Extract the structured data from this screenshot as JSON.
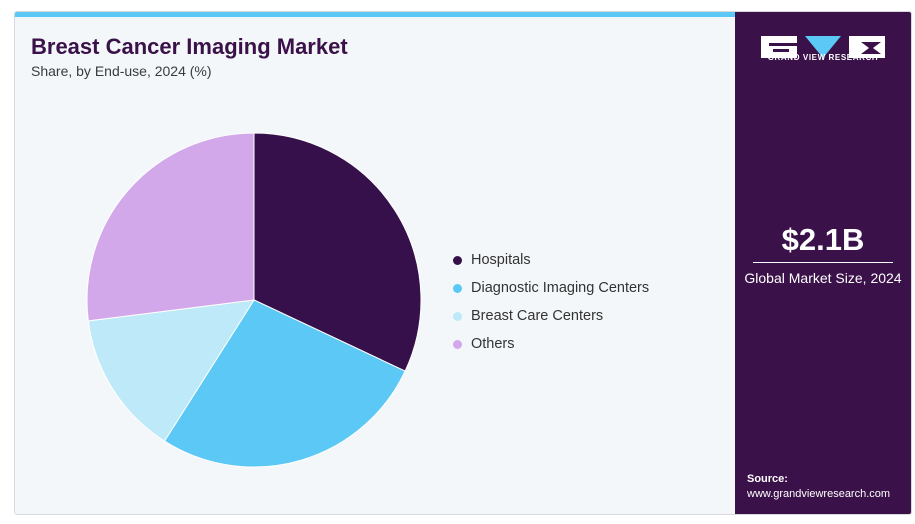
{
  "header": {
    "title": "Breast Cancer Imaging Market",
    "subtitle": "Share, by End-use, 2024 (%)"
  },
  "chart_data": {
    "type": "pie",
    "title": "Breast Cancer Imaging Market",
    "subtitle": "Share, by End-use, 2024 (%)",
    "categories": [
      "Hospitals",
      "Diagnostic Imaging Centers",
      "Breast Care Centers",
      "Others"
    ],
    "values": [
      32,
      27,
      14,
      27
    ],
    "colors": [
      "#36104a",
      "#5bc8f5",
      "#bde9f8",
      "#d2a8ea"
    ],
    "legend_position": "right"
  },
  "sidebar": {
    "brand": "GRAND VIEW RESEARCH",
    "market_size": "$2.1B",
    "market_label": "Global Market Size, 2024",
    "source_label": "Source:",
    "source_url": "www.grandviewresearch.com"
  }
}
